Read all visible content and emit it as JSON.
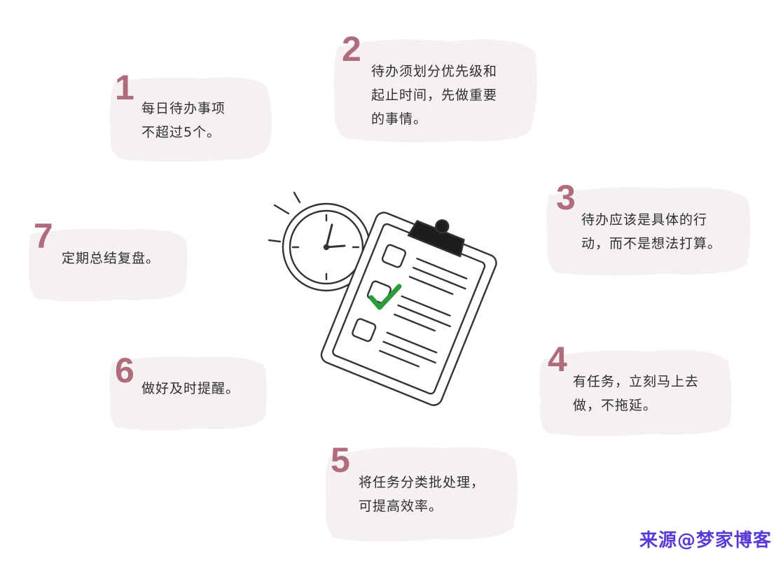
{
  "tips": [
    {
      "number": "1",
      "line1": "每日待办事项",
      "line2": "不超过5个。",
      "line3": ""
    },
    {
      "number": "2",
      "line1": "待办须划分优先级和",
      "line2": "起止时间，先做重要",
      "line3": "的事情。"
    },
    {
      "number": "3",
      "line1": "待办应该是具体的行",
      "line2": "动，而不是想法打算。",
      "line3": ""
    },
    {
      "number": "4",
      "line1": "有任务，立刻马上去",
      "line2": "做，不拖延。",
      "line3": ""
    },
    {
      "number": "5",
      "line1": "将任务分类批处理，",
      "line2": "可提高效率。",
      "line3": ""
    },
    {
      "number": "6",
      "line1": "做好及时提醒。",
      "line2": "",
      "line3": ""
    },
    {
      "number": "7",
      "line1": "定期总结复盘。",
      "line2": "",
      "line3": ""
    }
  ],
  "watermark": "来源@梦家博客",
  "colors": {
    "card_bg": "#f5f0f1",
    "number": "#b06b7d",
    "check": "#2a9a3a"
  },
  "icons": {
    "center": "clipboard-checklist-with-clock-icon"
  }
}
